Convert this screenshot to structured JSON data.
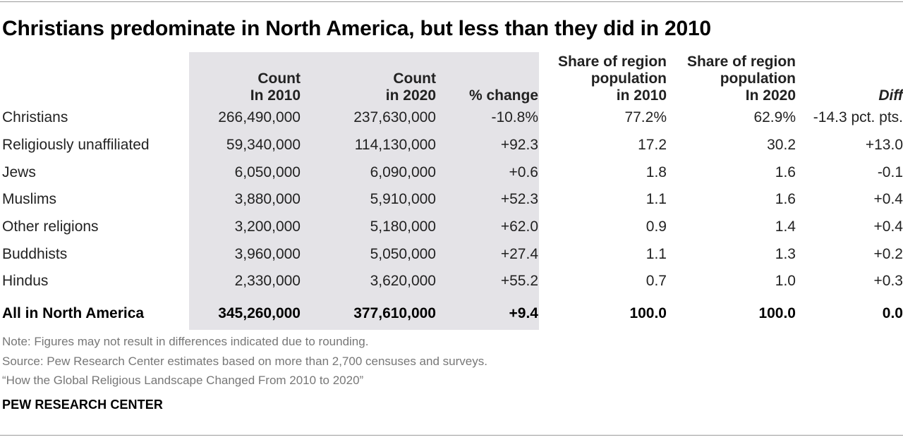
{
  "chart_data": {
    "type": "table",
    "title": "Christians predominate in North America, but less than they did in 2010",
    "columns": [
      {
        "line1": "",
        "line2": "",
        "line3": ""
      },
      {
        "line1": "",
        "line2": "Count",
        "line3": "In 2010"
      },
      {
        "line1": "",
        "line2": "Count",
        "line3": "in 2020"
      },
      {
        "line1": "",
        "line2": "",
        "line3": "% change"
      },
      {
        "line1": "Share of region",
        "line2": "population",
        "line3": "in 2010"
      },
      {
        "line1": "Share of region",
        "line2": "population",
        "line3": "In 2020"
      },
      {
        "line1": "",
        "line2": "",
        "line3": "Diff"
      }
    ],
    "rows": [
      {
        "label": "Christians",
        "count_2010": "266,490,000",
        "count_2020": "237,630,000",
        "pct_change": "-10.8%",
        "share_2010": "77.2%",
        "share_2020": "62.9%",
        "diff": "-14.3 pct. pts."
      },
      {
        "label": "Religiously unaffiliated",
        "count_2010": "59,340,000",
        "count_2020": "114,130,000",
        "pct_change": "+92.3",
        "share_2010": "17.2",
        "share_2020": "30.2",
        "diff": "+13.0"
      },
      {
        "label": "Jews",
        "count_2010": "6,050,000",
        "count_2020": "6,090,000",
        "pct_change": "+0.6",
        "share_2010": "1.8",
        "share_2020": "1.6",
        "diff": "-0.1"
      },
      {
        "label": "Muslims",
        "count_2010": "3,880,000",
        "count_2020": "5,910,000",
        "pct_change": "+52.3",
        "share_2010": "1.1",
        "share_2020": "1.6",
        "diff": "+0.4"
      },
      {
        "label": "Other religions",
        "count_2010": "3,200,000",
        "count_2020": "5,180,000",
        "pct_change": "+62.0",
        "share_2010": "0.9",
        "share_2020": "1.4",
        "diff": "+0.4"
      },
      {
        "label": "Buddhists",
        "count_2010": "3,960,000",
        "count_2020": "5,050,000",
        "pct_change": "+27.4",
        "share_2010": "1.1",
        "share_2020": "1.3",
        "diff": "+0.2"
      },
      {
        "label": "Hindus",
        "count_2010": "2,330,000",
        "count_2020": "3,620,000",
        "pct_change": "+55.2",
        "share_2010": "0.7",
        "share_2020": "1.0",
        "diff": "+0.3"
      }
    ],
    "total": {
      "label": "All in North America",
      "count_2010": "345,260,000",
      "count_2020": "377,610,000",
      "pct_change": "+9.4",
      "share_2010": "100.0",
      "share_2020": "100.0",
      "diff": "0.0"
    },
    "highlight_color": "#e4e3e7"
  },
  "notes": {
    "note": "Note: Figures may not result in differences indicated due to rounding.",
    "source": "Source: Pew Research Center estimates based on more than 2,700 censuses and surveys.",
    "report": "“How the Global Religious Landscape Changed From 2010 to 2020”"
  },
  "brand": "PEW RESEARCH CENTER"
}
